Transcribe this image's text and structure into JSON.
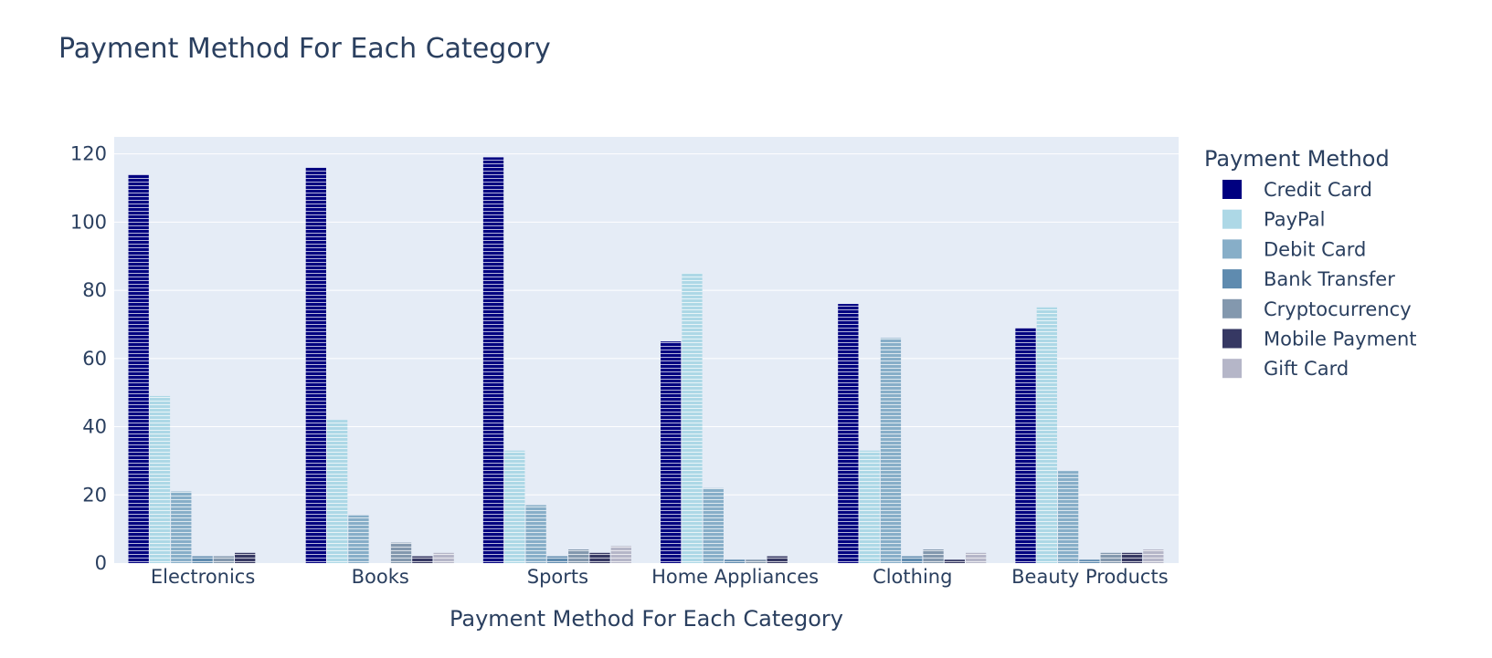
{
  "chart_data": {
    "type": "bar",
    "title": "Payment Method For Each Category",
    "xlabel": "Payment Method For Each Category",
    "ylabel": "",
    "ylim": [
      0,
      125
    ],
    "yticks": [
      0,
      20,
      40,
      60,
      80,
      100,
      120
    ],
    "grid": true,
    "barmode": "group",
    "pattern": "horizontal-lines",
    "legend_title": "Payment Method",
    "legend_position": "right",
    "categories": [
      "Electronics",
      "Books",
      "Sports",
      "Home Appliances",
      "Clothing",
      "Beauty Products"
    ],
    "series": [
      {
        "name": "Credit Card",
        "color": "#000080",
        "values": [
          114,
          116,
          119,
          65,
          76,
          69
        ]
      },
      {
        "name": "PayPal",
        "color": "#ADD8E6",
        "values": [
          49,
          42,
          33,
          85,
          33,
          75
        ]
      },
      {
        "name": "Debit Card",
        "color": "#87AEC8",
        "values": [
          21,
          14,
          17,
          22,
          66,
          27
        ]
      },
      {
        "name": "Bank Transfer",
        "color": "#5F8BAF",
        "values": [
          2,
          0,
          2,
          1,
          2,
          1
        ]
      },
      {
        "name": "Cryptocurrency",
        "color": "#8398AE",
        "values": [
          2,
          6,
          4,
          1,
          4,
          3
        ]
      },
      {
        "name": "Mobile Payment",
        "color": "#363863",
        "values": [
          3,
          2,
          3,
          2,
          1,
          3
        ]
      },
      {
        "name": "Gift Card",
        "color": "#B5B6C8",
        "values": [
          0,
          3,
          5,
          0,
          3,
          4
        ]
      }
    ],
    "colors": {
      "plot_bg": "#E5ECF6",
      "grid": "#FFFFFF",
      "text": "#2a3f5f"
    }
  }
}
